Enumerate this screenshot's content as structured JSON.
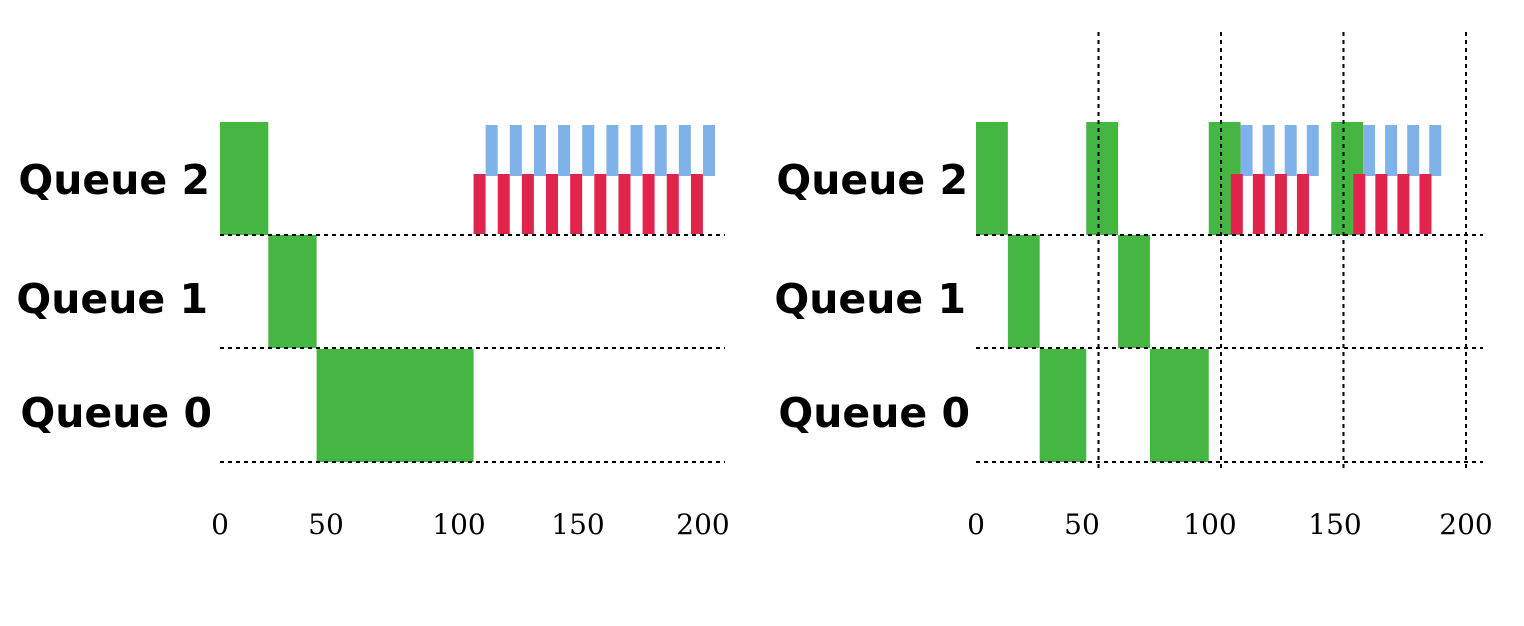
{
  "colors": {
    "green": "#44b641",
    "blue": "#7fb2e9",
    "red": "#e0244b",
    "line": "#000000"
  },
  "chart_data": [
    {
      "type": "bar",
      "subtype": "scheduling-timeline",
      "queues": [
        "Queue 2",
        "Queue 1",
        "Queue 0"
      ],
      "xticks": [
        "0",
        "50",
        "100",
        "150",
        "200"
      ],
      "xlim": [
        0,
        200
      ],
      "period_lines": [],
      "segments": [
        {
          "queue": "Queue 2",
          "start": 0,
          "end": 20,
          "color": "green"
        },
        {
          "queue": "Queue 1",
          "start": 20,
          "end": 40,
          "color": "green"
        },
        {
          "queue": "Queue 0",
          "start": 40,
          "end": 105,
          "color": "green"
        }
      ],
      "stripes": [
        {
          "queue": "Queue 2",
          "kind": "blue",
          "starts": [
            110,
            120,
            130,
            140,
            150,
            160,
            170,
            180,
            190,
            200
          ]
        },
        {
          "queue": "Queue 2",
          "kind": "red",
          "starts": [
            105,
            115,
            125,
            135,
            145,
            155,
            165,
            175,
            185,
            195
          ]
        }
      ]
    },
    {
      "type": "bar",
      "subtype": "scheduling-timeline",
      "queues": [
        "Queue 2",
        "Queue 1",
        "Queue 0"
      ],
      "xticks": [
        "0",
        "50",
        "100",
        "150",
        "200"
      ],
      "xlim": [
        0,
        200
      ],
      "period_lines": [
        50,
        100,
        150,
        200
      ],
      "segments": [
        {
          "queue": "Queue 2",
          "start": 0,
          "end": 13,
          "color": "green"
        },
        {
          "queue": "Queue 1",
          "start": 13,
          "end": 26,
          "color": "green"
        },
        {
          "queue": "Queue 0",
          "start": 26,
          "end": 45,
          "color": "green"
        },
        {
          "queue": "Queue 2",
          "start": 45,
          "end": 58,
          "color": "green"
        },
        {
          "queue": "Queue 1",
          "start": 58,
          "end": 71,
          "color": "green"
        },
        {
          "queue": "Queue 0",
          "start": 71,
          "end": 95,
          "color": "green"
        },
        {
          "queue": "Queue 2",
          "start": 95,
          "end": 108,
          "color": "green"
        },
        {
          "queue": "Queue 2",
          "start": 145,
          "end": 158,
          "color": "green"
        }
      ],
      "stripes": [
        {
          "queue": "Queue 2",
          "kind": "blue",
          "starts": [
            108,
            117,
            126,
            135,
            158,
            167,
            176,
            185
          ]
        },
        {
          "queue": "Queue 2",
          "kind": "red",
          "starts": [
            104,
            113,
            122,
            131,
            154,
            163,
            172,
            181
          ]
        }
      ]
    }
  ]
}
